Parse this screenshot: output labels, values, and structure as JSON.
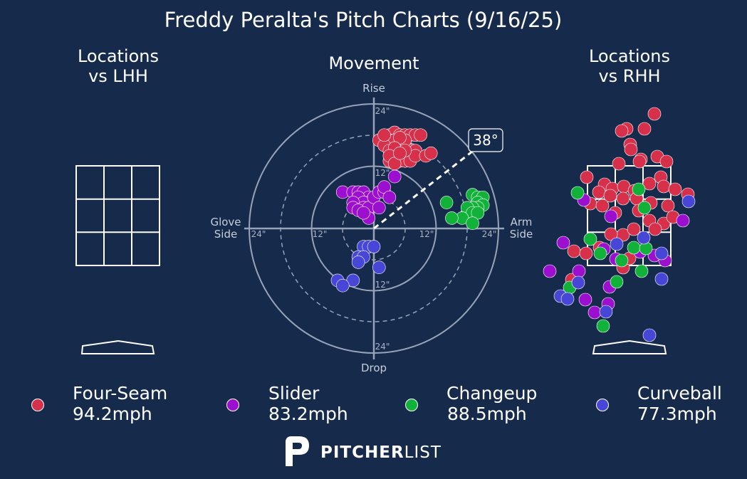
{
  "title": "Freddy Peralta's Pitch Charts (9/16/25)",
  "panels": {
    "lhh_title_1": "Locations",
    "lhh_title_2": "vs LHH",
    "movement_title": "Movement",
    "rhh_title_1": "Locations",
    "rhh_title_2": "vs RHH"
  },
  "movement": {
    "rise_label": "Rise",
    "drop_label": "Drop",
    "glove_label_1": "Glove",
    "glove_label_2": "Side",
    "arm_label_1": "Arm",
    "arm_label_2": "Side",
    "arm_angle_label": "38°",
    "ring_labels": [
      "24\"",
      "12\"",
      "12\"",
      "24\"",
      "12\"",
      "24\"",
      "12\"",
      "24\""
    ]
  },
  "colors": {
    "background": "#162a4c",
    "Four-Seam": "#d6304a",
    "Slider": "#9c0fcf",
    "Changeup": "#12b23a",
    "Curveball": "#4846d6"
  },
  "legend": [
    {
      "name": "Four-Seam",
      "speed": "94.2mph"
    },
    {
      "name": "Slider",
      "speed": "83.2mph"
    },
    {
      "name": "Changeup",
      "speed": "88.5mph"
    },
    {
      "name": "Curveball",
      "speed": "77.3mph"
    }
  ],
  "logo": {
    "bold": "PITCHER",
    "light": "LIST",
    "icon": "pitcherlist-p-icon"
  },
  "chart_data": {
    "type": "scatter",
    "title": "Freddy Peralta's Pitch Charts (9/16/25)",
    "movement": {
      "x_unit": "inches (negative = glove side, positive = arm side)",
      "y_unit": "inches (positive = rise, negative = drop)",
      "lim": [
        -24,
        24
      ],
      "arm_angle_deg": 38,
      "series": [
        {
          "name": "Four-Seam",
          "points": [
            [
              1,
              17
            ],
            [
              3,
              18
            ],
            [
              4,
              18.5
            ],
            [
              5,
              18
            ],
            [
              6,
              18
            ],
            [
              7,
              18
            ],
            [
              8,
              18
            ],
            [
              9,
              18
            ],
            [
              3,
              17
            ],
            [
              4,
              17
            ],
            [
              5,
              16
            ],
            [
              6,
              16
            ],
            [
              7,
              15
            ],
            [
              8,
              15
            ],
            [
              2,
              16
            ],
            [
              3,
              15
            ],
            [
              4,
              14
            ],
            [
              5,
              14
            ],
            [
              5,
              13
            ],
            [
              4,
              13
            ],
            [
              3,
              13
            ],
            [
              6,
              13
            ],
            [
              7,
              13
            ],
            [
              8,
              14
            ],
            [
              10,
              14
            ],
            [
              11,
              14.5
            ],
            [
              6,
              17
            ],
            [
              5,
              17.5
            ],
            [
              2,
              18
            ],
            [
              4,
              15.5
            ],
            [
              6,
              15
            ],
            [
              3,
              14
            ],
            [
              4,
              12.5
            ],
            [
              5,
              14.5
            ]
          ]
        },
        {
          "name": "Slider",
          "points": [
            [
              -6,
              7
            ],
            [
              -4,
              7
            ],
            [
              -3,
              7
            ],
            [
              -2,
              6
            ],
            [
              -2,
              7
            ],
            [
              -1,
              6
            ],
            [
              -1,
              5
            ],
            [
              -3,
              6
            ],
            [
              -2,
              5
            ],
            [
              -4,
              5
            ],
            [
              -2,
              4
            ],
            [
              -1,
              4
            ],
            [
              -4,
              4
            ],
            [
              -3,
              3.5
            ],
            [
              0,
              6
            ],
            [
              1,
              7
            ],
            [
              2,
              7
            ],
            [
              2,
              8
            ],
            [
              4,
              10
            ],
            [
              3,
              6
            ],
            [
              1,
              4
            ],
            [
              -1,
              2
            ],
            [
              -2,
              3
            ]
          ]
        },
        {
          "name": "Changeup",
          "points": [
            [
              14,
              5
            ],
            [
              19,
              6.5
            ],
            [
              20,
              6
            ],
            [
              21,
              6
            ],
            [
              20,
              5
            ],
            [
              21,
              4.5
            ],
            [
              20,
              4
            ],
            [
              19,
              4
            ],
            [
              18,
              3
            ],
            [
              18,
              4
            ],
            [
              19,
              3
            ],
            [
              20,
              3
            ],
            [
              17,
              2
            ],
            [
              19,
              1
            ],
            [
              15,
              2
            ]
          ]
        },
        {
          "name": "Curveball",
          "points": [
            [
              -2,
              -3.5
            ],
            [
              -1,
              -3.5
            ],
            [
              0,
              -3.5
            ],
            [
              -3,
              -5.5
            ],
            [
              -2,
              -5.5
            ],
            [
              -3,
              -6.5
            ],
            [
              1,
              -7.5
            ],
            [
              -7,
              -10
            ],
            [
              -4,
              -10
            ],
            [
              -6,
              -11
            ]
          ]
        }
      ]
    },
    "strike_zone_grid": "3x3"
  }
}
